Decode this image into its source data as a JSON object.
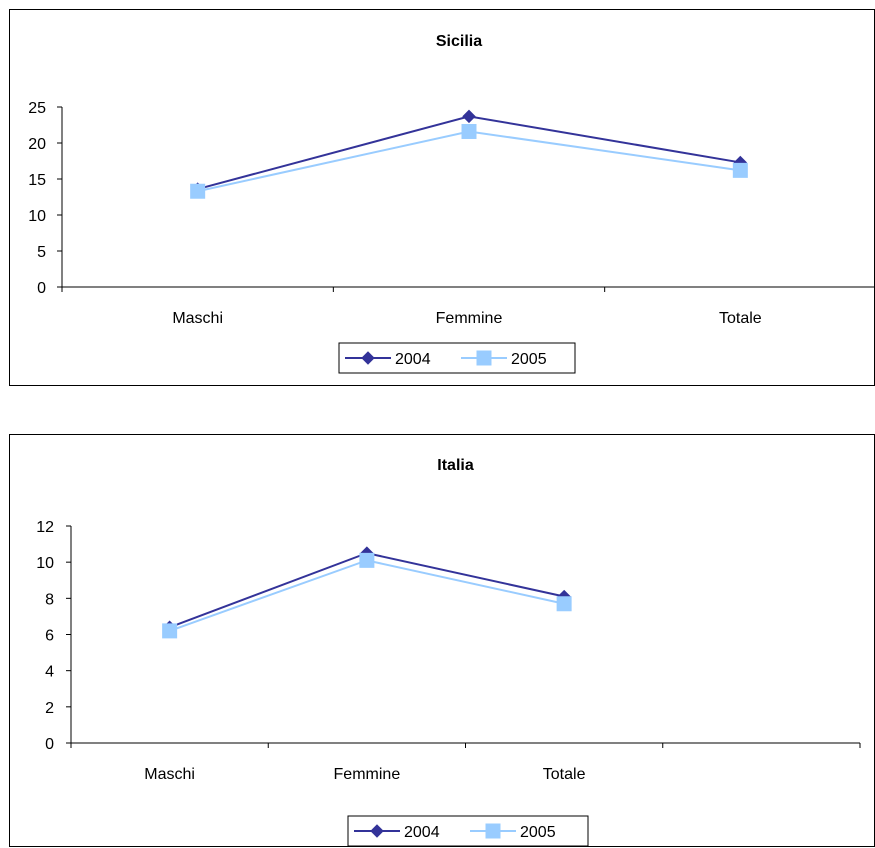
{
  "chart_data": [
    {
      "type": "line",
      "title": "Sicilia",
      "categories": [
        "Maschi",
        "Femmine",
        "Totale"
      ],
      "series": [
        {
          "name": "2004",
          "values": [
            13.6,
            23.7,
            17.3
          ],
          "color": "#333399",
          "marker": "diamond"
        },
        {
          "name": "2005",
          "values": [
            13.3,
            21.6,
            16.2
          ],
          "color": "#99ccff",
          "marker": "square"
        }
      ],
      "ylim": [
        0,
        25
      ],
      "yticks": [
        0,
        5,
        10,
        15,
        20,
        25
      ],
      "legend": "bottom"
    },
    {
      "type": "line",
      "title": "Italia",
      "categories": [
        "Maschi",
        "Femmine",
        "Totale",
        ""
      ],
      "series": [
        {
          "name": "2004",
          "values": [
            6.4,
            10.5,
            8.1,
            null
          ],
          "color": "#333399",
          "marker": "diamond"
        },
        {
          "name": "2005",
          "values": [
            6.2,
            10.1,
            7.7,
            null
          ],
          "color": "#99ccff",
          "marker": "square"
        }
      ],
      "ylim": [
        0,
        12
      ],
      "yticks": [
        0,
        2,
        4,
        6,
        8,
        10,
        12
      ],
      "legend": "bottom"
    }
  ]
}
